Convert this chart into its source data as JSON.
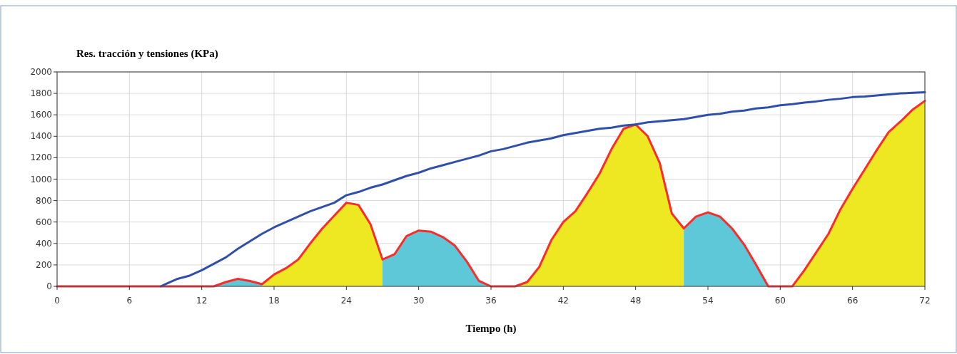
{
  "chart_data": {
    "type": "area",
    "title": "Res. tracción y tensiones (KPa)",
    "xlabel": "Tiempo (h)",
    "xlim": [
      0,
      72
    ],
    "xticks": [
      0,
      6,
      12,
      18,
      24,
      30,
      36,
      42,
      48,
      54,
      60,
      66,
      72
    ],
    "ylim": [
      0,
      2000
    ],
    "yticks": [
      0,
      200,
      400,
      600,
      800,
      1000,
      1200,
      1400,
      1600,
      1800,
      2000
    ],
    "grid": true,
    "series": [
      {
        "color": "#ede822",
        "x": [
          17,
          18,
          19,
          20,
          21,
          22,
          23,
          24,
          25,
          26,
          27,
          28,
          38,
          39,
          40,
          41,
          42,
          43,
          44,
          45,
          46,
          47,
          48,
          49,
          50,
          51,
          52,
          53,
          61,
          62,
          63,
          64,
          65,
          66,
          67,
          68,
          69,
          70,
          71,
          72
        ],
        "values": [
          20,
          110,
          170,
          250,
          400,
          540,
          660,
          780,
          760,
          580,
          250,
          null,
          0,
          40,
          180,
          430,
          600,
          700,
          870,
          1050,
          1280,
          1470,
          1510,
          1400,
          1150,
          680,
          540,
          null,
          0,
          150,
          320,
          490,
          720,
          910,
          1090,
          1270,
          1440,
          1540,
          1650,
          1730
        ]
      },
      {
        "color": "#5ec8d8",
        "x": [
          13,
          14,
          15,
          16,
          17,
          18,
          27,
          28,
          29,
          30,
          31,
          32,
          33,
          34,
          35,
          36,
          37,
          52,
          53,
          54,
          55,
          56,
          57,
          58,
          59
        ],
        "values": [
          0,
          40,
          70,
          50,
          20,
          null,
          250,
          300,
          470,
          520,
          510,
          460,
          380,
          230,
          50,
          0,
          null,
          540,
          650,
          690,
          650,
          540,
          390,
          200,
          0
        ]
      },
      {
        "type": "line",
        "color": "#ff2a2a",
        "x": [
          0,
          13,
          14,
          15,
          16,
          17,
          18,
          19,
          20,
          21,
          22,
          23,
          24,
          25,
          26,
          27,
          28,
          29,
          30,
          31,
          32,
          33,
          34,
          35,
          36,
          38,
          39,
          40,
          41,
          42,
          43,
          44,
          45,
          46,
          47,
          48,
          49,
          50,
          51,
          52,
          53,
          54,
          55,
          56,
          57,
          58,
          59,
          61,
          62,
          63,
          64,
          65,
          66,
          67,
          68,
          69,
          70,
          71,
          72
        ],
        "values": [
          0,
          0,
          40,
          70,
          50,
          20,
          110,
          170,
          250,
          400,
          540,
          660,
          780,
          760,
          580,
          250,
          300,
          470,
          520,
          510,
          460,
          380,
          230,
          50,
          0,
          0,
          40,
          180,
          430,
          600,
          700,
          870,
          1050,
          1280,
          1470,
          1510,
          1400,
          1150,
          680,
          540,
          650,
          690,
          650,
          540,
          390,
          200,
          0,
          0,
          150,
          320,
          490,
          720,
          910,
          1090,
          1270,
          1440,
          1540,
          1650,
          1730
        ]
      },
      {
        "type": "line",
        "color": "#2f4fa8",
        "x": [
          8.6,
          9,
          10,
          11,
          12,
          13,
          14,
          15,
          16,
          17,
          18,
          19,
          20,
          21,
          22,
          23,
          24,
          25,
          26,
          27,
          28,
          29,
          30,
          31,
          32,
          33,
          34,
          35,
          36,
          37,
          38,
          39,
          40,
          41,
          42,
          43,
          44,
          45,
          46,
          47,
          48,
          49,
          50,
          51,
          52,
          53,
          54,
          55,
          56,
          57,
          58,
          59,
          60,
          61,
          62,
          63,
          64,
          65,
          66,
          67,
          68,
          69,
          70,
          71,
          72
        ],
        "values": [
          0,
          20,
          70,
          100,
          150,
          210,
          270,
          350,
          420,
          490,
          550,
          600,
          650,
          700,
          740,
          780,
          850,
          880,
          920,
          950,
          990,
          1030,
          1060,
          1100,
          1130,
          1160,
          1190,
          1220,
          1260,
          1280,
          1310,
          1340,
          1360,
          1380,
          1410,
          1430,
          1450,
          1470,
          1480,
          1500,
          1510,
          1530,
          1540,
          1550,
          1560,
          1580,
          1600,
          1610,
          1630,
          1640,
          1660,
          1670,
          1690,
          1700,
          1715,
          1725,
          1740,
          1750,
          1765,
          1770,
          1780,
          1790,
          1800,
          1805,
          1810
        ]
      }
    ]
  }
}
